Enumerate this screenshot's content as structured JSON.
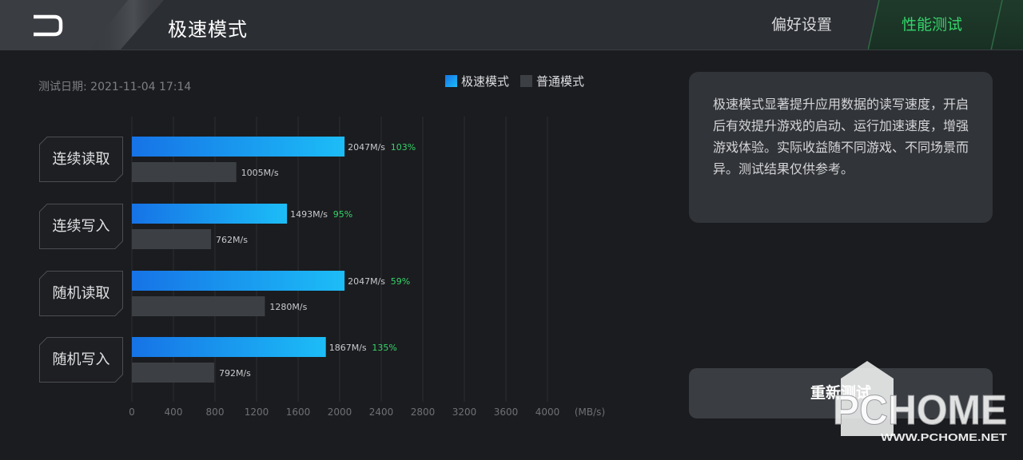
{
  "header": {
    "title": "极速模式",
    "tabs": [
      {
        "label": "偏好设置",
        "active": false
      },
      {
        "label": "性能测试",
        "active": true
      }
    ],
    "icons": [
      "back-arrow-icon"
    ]
  },
  "test_date": "测试日期: 2021-11-04 17:14",
  "legend": [
    {
      "label": "极速模式",
      "color": "#1aa0f5"
    },
    {
      "label": "普通模式",
      "color": "#3c4045"
    }
  ],
  "chart_data": {
    "type": "bar",
    "orientation": "horizontal",
    "categories": [
      "连续读取",
      "连续写入",
      "随机读取",
      "随机写入"
    ],
    "series": [
      {
        "name": "极速模式",
        "values": [
          2047,
          1493,
          2047,
          1867
        ],
        "labels": [
          "2047M/s",
          "1493M/s",
          "2047M/s",
          "1867M/s"
        ]
      },
      {
        "name": "普通模式",
        "values": [
          1005,
          762,
          1280,
          792
        ],
        "labels": [
          "1005M/s",
          "762M/s",
          "1280M/s",
          "792M/s"
        ]
      }
    ],
    "improvements": [
      "103%",
      "95%",
      "59%",
      "135%"
    ],
    "xticks": [
      "0",
      "400",
      "800",
      "1200",
      "1600",
      "2000",
      "2400",
      "2800",
      "3200",
      "3600",
      "4000"
    ],
    "xunit": "(MB/s)",
    "xlim": [
      0,
      4400
    ],
    "grid": true
  },
  "info_panel": {
    "text": "极速模式显著提升应用数据的读写速度，开启后有效提升游戏的启动、运行加速速度，增强游戏体验。实际收益随不同游戏、不同场景而异。测试结果仅供参考。"
  },
  "retest_button": {
    "label": "重新测试"
  },
  "watermark": {
    "logo": "PCHOME",
    "url": "WWW.PCHOME.NET"
  },
  "colors": {
    "accent": "#35d46a",
    "fast_bar_start": "#1673e6",
    "fast_bar_end": "#1cbdf7",
    "normal_bar": "#3c4045"
  }
}
